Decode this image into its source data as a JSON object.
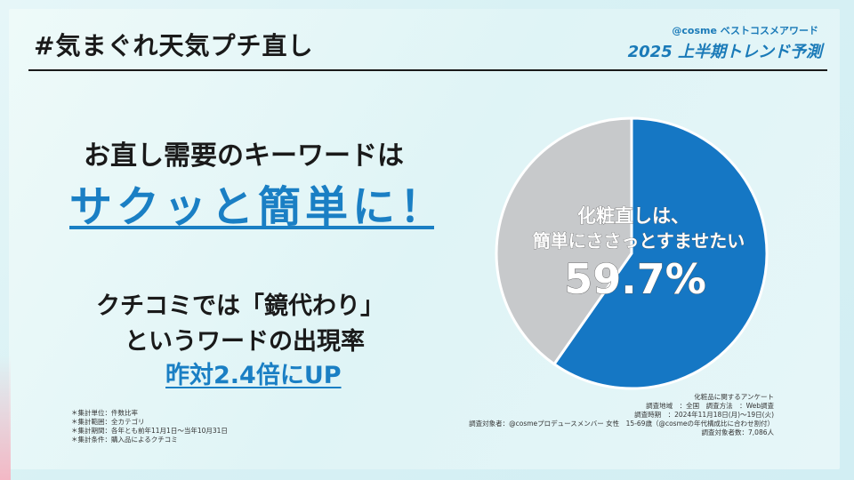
{
  "header": {
    "hashtag_title": "#気まぐれ天気プチ直し",
    "brand": "@cosme ベストコスメアワード",
    "brand_sub": "2025 上半期トレンド予測"
  },
  "headline": {
    "line1": "お直し需要のキーワードは",
    "line2": "サクッと簡単に！"
  },
  "kuchikomi": {
    "line1": "クチコミでは「鏡代わり」",
    "line2": "というワードの出現率",
    "line3": "昨対2.4倍にUP"
  },
  "notes": [
    "＊集計単位：件数比率",
    "＊集計範囲：全カテゴリ",
    "＊集計期間：各年とも前年11月1日〜当年10月31日",
    "＊集計条件：購入品によるクチコミ"
  ],
  "survey": [
    "化粧品に関するアンケート",
    "調査地域　：全国　調査方法　：Web調査",
    "調査時期　：2024年11月18日(月)〜19日(火)",
    "調査対象者：@cosmeプロデュースメンバー 女性　15-69歳（@cosmeの年代構成比に合わせ割付）",
    "調査対象者数：7,086人"
  ],
  "colors": {
    "accent_blue": "#1a7fc4",
    "pie_blue": "#1577c4",
    "pie_gray": "#c7c9cb",
    "text_dark": "#1a1a1a"
  },
  "chart_data": {
    "type": "pie",
    "slices": [
      {
        "value": 59.7
      },
      {
        "value": 40.3
      }
    ],
    "colors": [
      "#1577c4",
      "#c7c9cb"
    ],
    "annotation_line1": "化粧直しは、",
    "annotation_line2": "簡単にささっとすませたい",
    "annotation_value": "59.7%"
  }
}
